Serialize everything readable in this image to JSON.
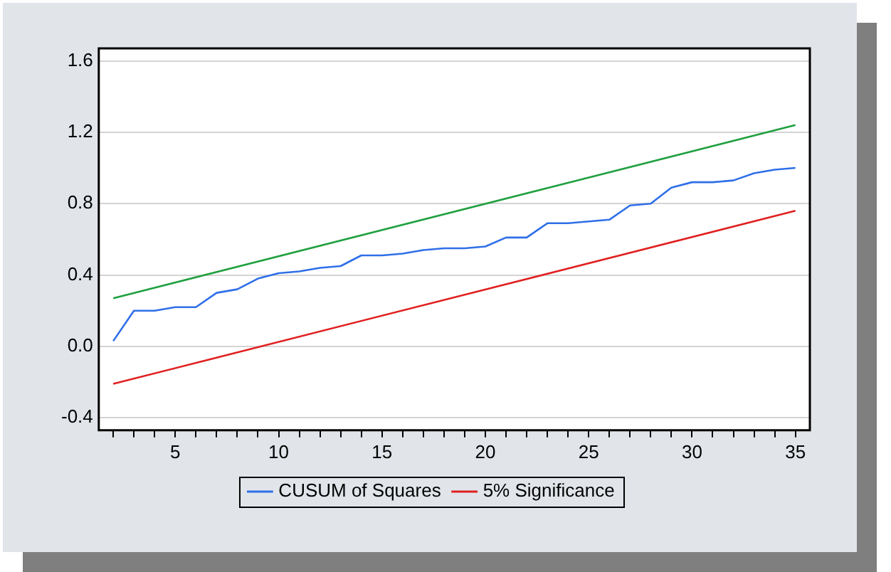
{
  "chart_data": {
    "type": "line",
    "x": [
      2,
      3,
      4,
      5,
      6,
      7,
      8,
      9,
      10,
      11,
      12,
      13,
      14,
      15,
      16,
      17,
      18,
      19,
      20,
      21,
      22,
      23,
      24,
      25,
      26,
      27,
      28,
      29,
      30,
      31,
      32,
      33,
      34,
      35
    ],
    "series": [
      {
        "name": "CUSUM of Squares",
        "color": "#2f6fe8",
        "values": [
          0.03,
          0.2,
          0.2,
          0.22,
          0.22,
          0.3,
          0.32,
          0.38,
          0.41,
          0.42,
          0.44,
          0.45,
          0.51,
          0.51,
          0.52,
          0.54,
          0.55,
          0.55,
          0.56,
          0.61,
          0.61,
          0.69,
          0.69,
          0.7,
          0.71,
          0.79,
          0.8,
          0.89,
          0.92,
          0.92,
          0.93,
          0.97,
          0.99,
          1.0
        ]
      },
      {
        "name": "5% Significance",
        "color": "#e02020",
        "values": [
          -0.21,
          null,
          null,
          null,
          null,
          null,
          null,
          null,
          null,
          null,
          null,
          null,
          null,
          null,
          null,
          null,
          null,
          null,
          null,
          null,
          null,
          null,
          null,
          null,
          null,
          null,
          null,
          null,
          null,
          null,
          null,
          null,
          null,
          0.76
        ]
      },
      {
        "color": "#20a040",
        "values": [
          0.27,
          null,
          null,
          null,
          null,
          null,
          null,
          null,
          null,
          null,
          null,
          null,
          null,
          null,
          null,
          null,
          null,
          null,
          null,
          null,
          null,
          null,
          null,
          null,
          null,
          null,
          null,
          null,
          null,
          null,
          null,
          null,
          null,
          1.24
        ]
      }
    ],
    "xlim": [
      1.3,
      35.7
    ],
    "xticks": [
      {
        "value": 2,
        "label": null
      },
      {
        "value": 3,
        "label": null
      },
      {
        "value": 4,
        "label": null
      },
      5,
      {
        "value": 6,
        "label": null
      },
      {
        "value": 7,
        "label": null
      },
      {
        "value": 8,
        "label": null
      },
      {
        "value": 9,
        "label": null
      },
      10,
      {
        "value": 11,
        "label": null
      },
      {
        "value": 12,
        "label": null
      },
      {
        "value": 13,
        "label": null
      },
      {
        "value": 14,
        "label": null
      },
      15,
      {
        "value": 16,
        "label": null
      },
      {
        "value": 17,
        "label": null
      },
      {
        "value": 18,
        "label": null
      },
      {
        "value": 19,
        "label": null
      },
      20,
      {
        "value": 21,
        "label": null
      },
      {
        "value": 22,
        "label": null
      },
      {
        "value": 23,
        "label": null
      },
      {
        "value": 24,
        "label": null
      },
      25,
      {
        "value": 26,
        "label": null
      },
      {
        "value": 27,
        "label": null
      },
      {
        "value": 28,
        "label": null
      },
      {
        "value": 29,
        "label": null
      },
      30,
      {
        "value": 31,
        "label": null
      },
      {
        "value": 32,
        "label": null
      },
      {
        "value": 33,
        "label": null
      },
      {
        "value": 34,
        "label": null
      },
      35
    ],
    "ylim": [
      -0.47,
      1.67
    ],
    "yticks": [
      {
        "value": -0.4,
        "label": "-0.4"
      },
      {
        "value": 0,
        "label": "0.0"
      },
      {
        "value": 0.4,
        "label": "0.4"
      },
      {
        "value": 0.8,
        "label": "0.8"
      },
      {
        "value": 1.2,
        "label": "1.2"
      },
      {
        "value": 1.6,
        "label": "1.6"
      }
    ],
    "grid": "y",
    "legend": "bottom",
    "marker": "none",
    "line_style": "solid"
  }
}
